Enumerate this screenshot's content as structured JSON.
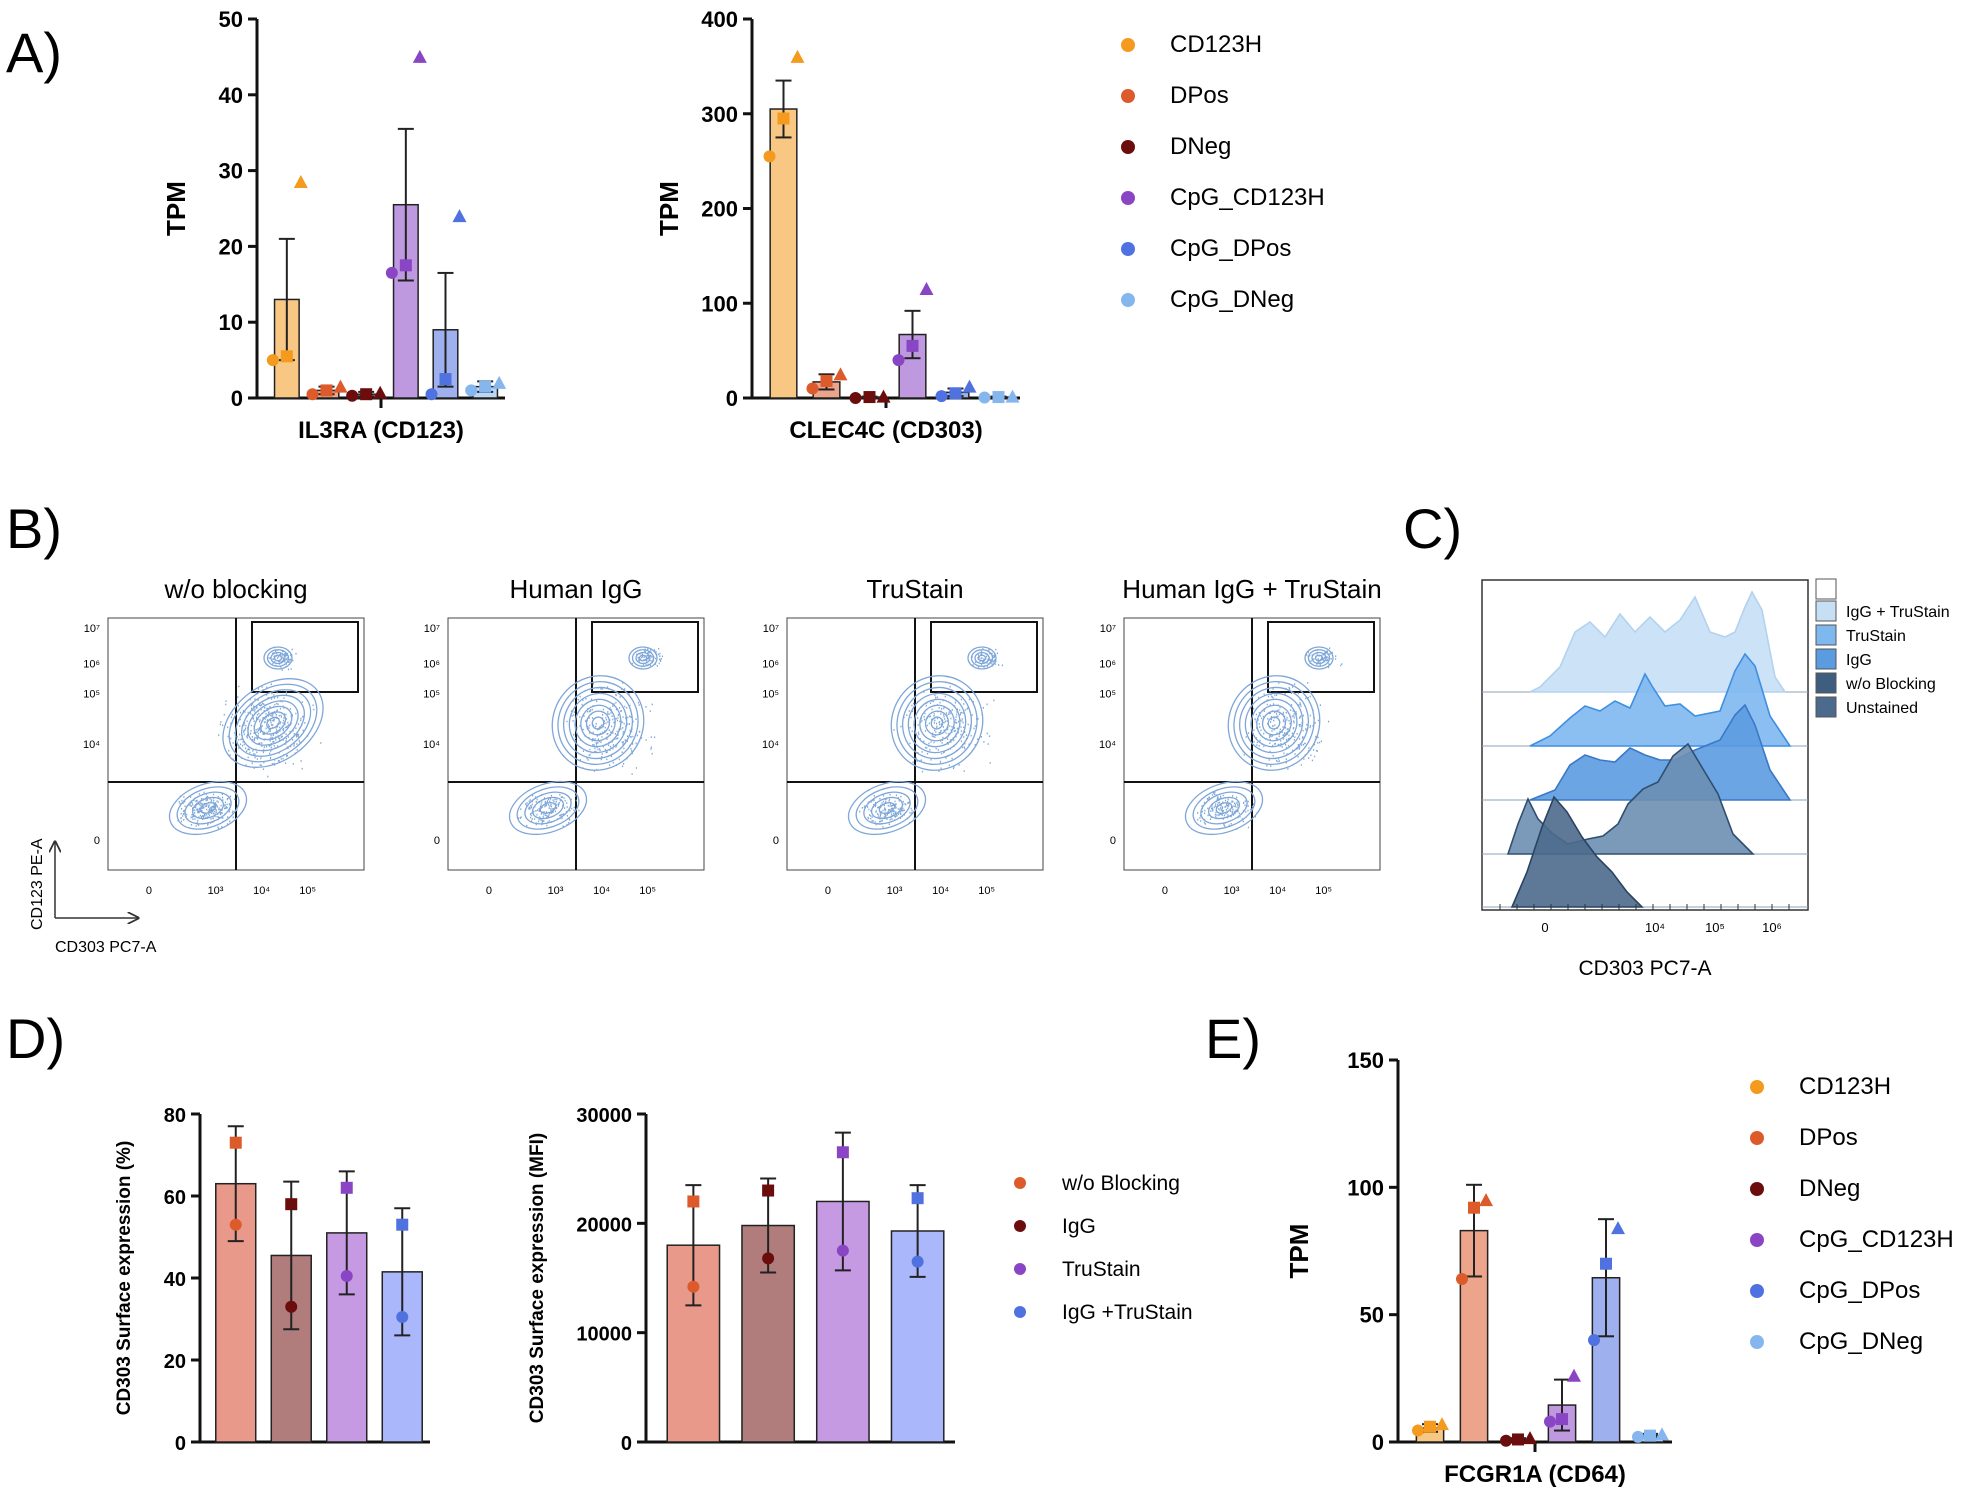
{
  "panel_labels": {
    "a": "A)",
    "b": "B)",
    "c": "C)",
    "d": "D)",
    "e": "E)"
  },
  "colors": {
    "CD123H": "#f39a1f",
    "DPos": "#dd5a2b",
    "DNeg": "#6b0d0d",
    "CpG_CD123H": "#8a45c5",
    "CpG_DPos": "#4f72e0",
    "CpG_DNeg": "#86b6ee",
    "wo_blocking": "#e8998a",
    "IgG": "#b07c7c",
    "TruStain": "#c59ae3",
    "IgG_TruStain": "#aab7fb",
    "contour": "#7ea6d8",
    "hist_dark": "#3f5d7e",
    "hist_light": "#c7dff5"
  },
  "legend_groups": [
    "CD123H",
    "DPos",
    "DNeg",
    "CpG_CD123H",
    "CpG_DPos",
    "CpG_DNeg"
  ],
  "legend_blocking": [
    "w/o Blocking",
    "IgG",
    "TruStain",
    "IgG +TruStain"
  ],
  "chart_data": [
    {
      "id": "A1",
      "type": "bar",
      "ylabel": "TPM",
      "xlabel": "IL3RA (CD123)",
      "ylim": [
        0,
        50
      ],
      "yticks": [
        "0",
        "10",
        "20",
        "30",
        "40",
        "50"
      ],
      "categories": [
        "CD123H",
        "DPos",
        "DNeg",
        "CpG_CD123H",
        "CpG_DPos",
        "CpG_DNeg"
      ],
      "values": [
        13,
        1,
        0.5,
        25.5,
        9,
        1.5
      ],
      "errors": [
        8,
        0.5,
        0.3,
        10,
        7.5,
        0.7
      ],
      "points": [
        [
          5,
          5.5,
          28.5
        ],
        [
          0.5,
          1,
          1.5
        ],
        [
          0.3,
          0.5,
          0.7
        ],
        [
          16.5,
          17.5,
          45
        ],
        [
          0.5,
          2.5,
          24
        ],
        [
          1,
          1.5,
          2
        ]
      ]
    },
    {
      "id": "A2",
      "type": "bar",
      "ylabel": "TPM",
      "xlabel": "CLEC4C (CD303)",
      "ylim": [
        0,
        400
      ],
      "yticks": [
        "0",
        "100",
        "200",
        "300",
        "400"
      ],
      "categories": [
        "CD123H",
        "DPos",
        "DNeg",
        "CpG_CD123H",
        "CpG_DPos",
        "CpG_DNeg"
      ],
      "values": [
        305,
        17,
        1,
        67,
        6,
        1
      ],
      "errors": [
        30,
        8,
        0.5,
        25,
        4,
        0.5
      ],
      "points": [
        [
          255,
          295,
          360
        ],
        [
          10,
          18,
          25
        ],
        [
          0,
          1,
          1.5
        ],
        [
          40,
          55,
          115
        ],
        [
          2,
          5,
          12
        ],
        [
          0.5,
          1,
          1.5
        ]
      ]
    },
    {
      "id": "D1",
      "type": "bar",
      "ylabel": "CD303 Surface expression (%)",
      "ylim": [
        0,
        80
      ],
      "yticks": [
        "0",
        "20",
        "40",
        "60",
        "80"
      ],
      "categories": [
        "w/o Blocking",
        "IgG",
        "TruStain",
        "IgG +TruStain"
      ],
      "values": [
        63,
        45.5,
        51,
        41.5
      ],
      "errors": [
        14,
        18,
        15,
        15.5
      ],
      "points": [
        [
          53,
          73
        ],
        [
          33,
          58
        ],
        [
          40.5,
          62
        ],
        [
          30.5,
          53
        ]
      ]
    },
    {
      "id": "D2",
      "type": "bar",
      "ylabel": "CD303 Surface expression (MFI)",
      "ylim": [
        0,
        30000
      ],
      "yticks": [
        "0",
        "10000",
        "20000",
        "30000"
      ],
      "categories": [
        "w/o Blocking",
        "IgG",
        "TruStain",
        "IgG +TruStain"
      ],
      "values": [
        18000,
        19800,
        22000,
        19300
      ],
      "errors": [
        5500,
        4300,
        6300,
        4200
      ],
      "points": [
        [
          14200,
          22000
        ],
        [
          16800,
          23000
        ],
        [
          17500,
          26500
        ],
        [
          16500,
          22300
        ]
      ]
    },
    {
      "id": "E",
      "type": "bar",
      "ylabel": "TPM",
      "xlabel": "FCGR1A (CD64)",
      "ylim": [
        0,
        150
      ],
      "yticks": [
        "0",
        "50",
        "100",
        "150"
      ],
      "categories": [
        "CD123H",
        "DPos",
        "DNeg",
        "CpG_CD123H",
        "CpG_DPos",
        "CpG_DNeg"
      ],
      "values": [
        5.5,
        83,
        1,
        14.5,
        64.5,
        2.5
      ],
      "errors": [
        1.5,
        18,
        0.5,
        10,
        23,
        0.7
      ],
      "points": [
        [
          4.5,
          6,
          7
        ],
        [
          64,
          92,
          95
        ],
        [
          0.5,
          1,
          1.5
        ],
        [
          8,
          9,
          26
        ],
        [
          40,
          70,
          84
        ],
        [
          2,
          2.5,
          3
        ]
      ]
    },
    {
      "id": "B",
      "type": "scatter",
      "titles": [
        "w/o blocking",
        "Human IgG",
        "TruStain",
        "Human IgG + TruStain"
      ],
      "xlabel": "CD303 PC7-A",
      "ylabel": "CD123 PE-A",
      "xtick_labels": [
        "0",
        "10³",
        "10⁴",
        "10⁵"
      ],
      "ytick_labels": [
        "0",
        "10⁴",
        "10⁵",
        "10⁶",
        "10⁷"
      ]
    },
    {
      "id": "C",
      "type": "area",
      "xlabel": "CD303 PC7-A",
      "xtick_labels": [
        "0",
        "10⁴",
        "10⁵",
        "10⁶"
      ],
      "legend": [
        "IgG + TruStain",
        "TruStain",
        "IgG",
        "w/o Blocking",
        "Unstained"
      ]
    }
  ]
}
